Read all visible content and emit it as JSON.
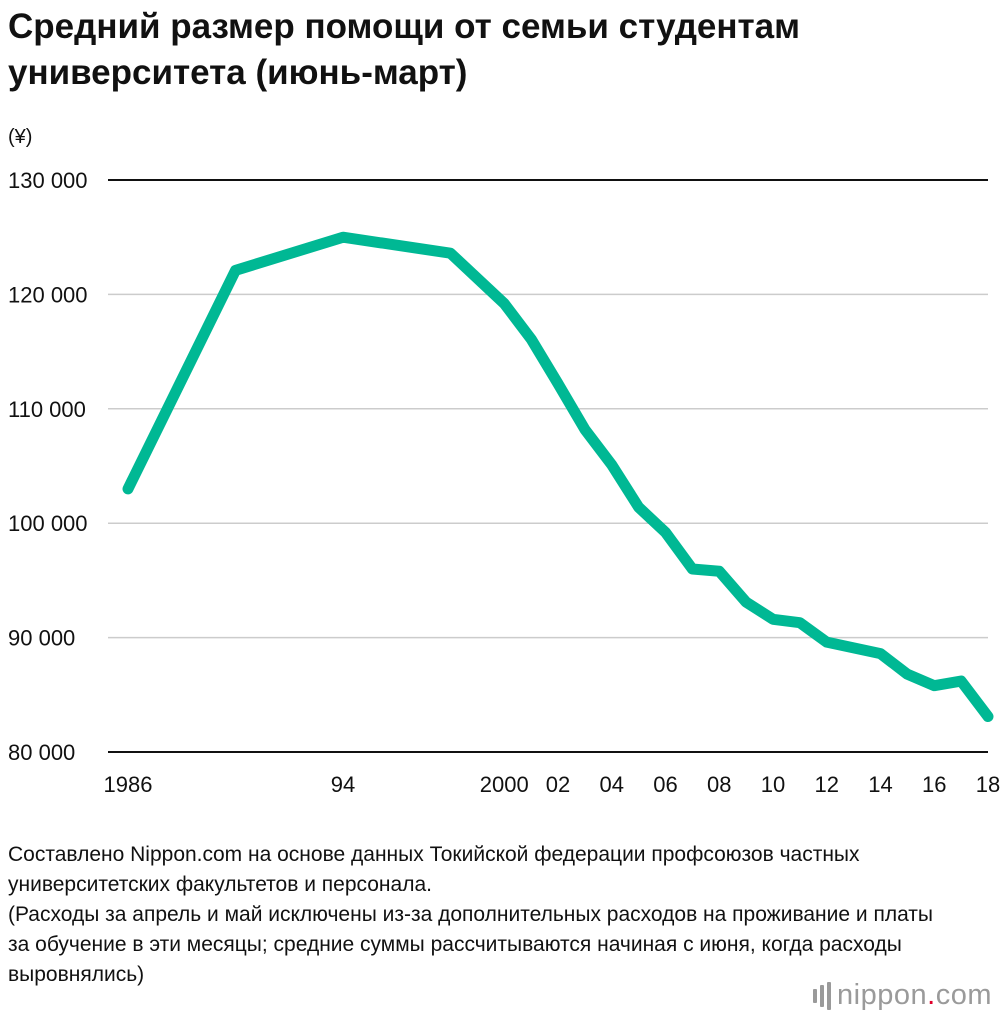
{
  "chart_data": {
    "type": "line",
    "title": "Средний размер помощи от семьи студентам университета (июнь-март)",
    "ylabel": "(¥)",
    "xlabel": "",
    "ylim": [
      80000,
      130000
    ],
    "grid": true,
    "y_ticks": [
      {
        "value": 130000,
        "label": "130 000"
      },
      {
        "value": 120000,
        "label": "120 000"
      },
      {
        "value": 110000,
        "label": "110 000"
      },
      {
        "value": 100000,
        "label": "100 000"
      },
      {
        "value": 90000,
        "label": "90 000"
      },
      {
        "value": 80000,
        "label": "80 000"
      }
    ],
    "x_ticks": [
      {
        "value": 1986,
        "label": "1986"
      },
      {
        "value": 1994,
        "label": "94"
      },
      {
        "value": 2000,
        "label": "2000"
      },
      {
        "value": 2002,
        "label": "02"
      },
      {
        "value": 2004,
        "label": "04"
      },
      {
        "value": 2006,
        "label": "06"
      },
      {
        "value": 2008,
        "label": "08"
      },
      {
        "value": 2010,
        "label": "10"
      },
      {
        "value": 2012,
        "label": "12"
      },
      {
        "value": 2014,
        "label": "14"
      },
      {
        "value": 2016,
        "label": "16"
      },
      {
        "value": 2018,
        "label": "18"
      }
    ],
    "series": [
      {
        "color": "#00b894",
        "points": [
          {
            "label": "1986",
            "value": 103000
          },
          {
            "label": "1990",
            "value": 122100
          },
          {
            "label": "1994",
            "value": 125000
          },
          {
            "label": "1998",
            "value": 123600
          },
          {
            "label": "2000",
            "value": 119200
          },
          {
            "label": "2001",
            "value": 116100
          },
          {
            "label": "2002",
            "value": 112200
          },
          {
            "label": "2003",
            "value": 108200
          },
          {
            "label": "2004",
            "value": 105100
          },
          {
            "label": "2005",
            "value": 101400
          },
          {
            "label": "2006",
            "value": 99200
          },
          {
            "label": "2007",
            "value": 96000
          },
          {
            "label": "2008",
            "value": 95800
          },
          {
            "label": "2009",
            "value": 93100
          },
          {
            "label": "2010",
            "value": 91600
          },
          {
            "label": "2011",
            "value": 91300
          },
          {
            "label": "2012",
            "value": 89600
          },
          {
            "label": "2013",
            "value": 89100
          },
          {
            "label": "2014",
            "value": 88600
          },
          {
            "label": "2015",
            "value": 86800
          },
          {
            "label": "2016",
            "value": 85800
          },
          {
            "label": "2017",
            "value": 86200
          },
          {
            "label": "2018",
            "value": 83100
          }
        ]
      }
    ]
  },
  "footer": {
    "source_text": "Составлено Nippon.com на основе данных Токийской федерации профсоюзов частных университетских факультетов и персонала.",
    "note_text": "(Расходы за апрель и май исключены из-за дополнительных расходов на проживание и платы за обучение в эти месяцы; средние суммы рассчитываются начиная с июня, когда расходы выровнялись)"
  },
  "logo": {
    "name": "nippon",
    "dot": ".",
    "suffix": "com",
    "icon": "nippon-bars-icon",
    "accent": "#e0002b"
  }
}
